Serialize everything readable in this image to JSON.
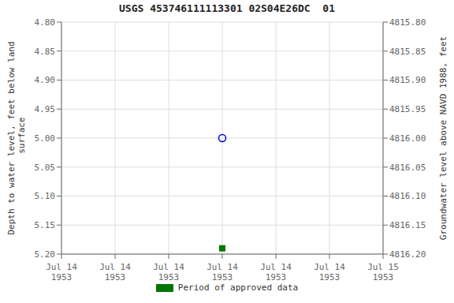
{
  "chart_data": {
    "type": "scatter",
    "title": "USGS 453746111113301 02S04E26DC  01",
    "ylabel": "Depth to water level, feet below land\n surface",
    "y2label": "Groundwater level above NAVD 1988, feet",
    "categories": [
      "Jul 14\n1953",
      "Jul 14\n1953",
      "Jul 14\n1953",
      "Jul 14\n1953",
      "Jul 14\n1953",
      "Jul 14\n1953",
      "Jul 15\n1953"
    ],
    "series": [
      {
        "color": "#0000cc",
        "marker": "circle",
        "values": [
          null,
          null,
          null,
          5.0,
          null,
          null,
          null
        ]
      },
      {
        "name": "Period of approved data",
        "color": "#007700",
        "marker": "square",
        "values": [
          null,
          null,
          null,
          5.19,
          null,
          null,
          null
        ]
      }
    ],
    "ylim": [
      5.2,
      4.8
    ],
    "yticks": [
      {
        "value": 4.8,
        "label": "4.80"
      },
      {
        "value": 4.85,
        "label": "4.85"
      },
      {
        "value": 4.9,
        "label": "4.90"
      },
      {
        "value": 4.95,
        "label": "4.95"
      },
      {
        "value": 5.0,
        "label": "5.00"
      },
      {
        "value": 5.05,
        "label": "5.05"
      },
      {
        "value": 5.1,
        "label": "5.10"
      },
      {
        "value": 5.15,
        "label": "5.15"
      },
      {
        "value": 5.2,
        "label": "5.20"
      }
    ],
    "y2lim": [
      4816.2,
      4815.8
    ],
    "y2ticks": [
      {
        "value": 4815.8,
        "label": "4815.80"
      },
      {
        "value": 4815.85,
        "label": "4815.85"
      },
      {
        "value": 4815.9,
        "label": "4815.90"
      },
      {
        "value": 4815.95,
        "label": "4815.95"
      },
      {
        "value": 4816.0,
        "label": "4816.00"
      },
      {
        "value": 4816.05,
        "label": "4816.05"
      },
      {
        "value": 4816.1,
        "label": "4816.10"
      },
      {
        "value": 4816.15,
        "label": "4816.15"
      },
      {
        "value": 4816.2,
        "label": "4816.20"
      }
    ],
    "grid": true,
    "legend": "bottom"
  }
}
